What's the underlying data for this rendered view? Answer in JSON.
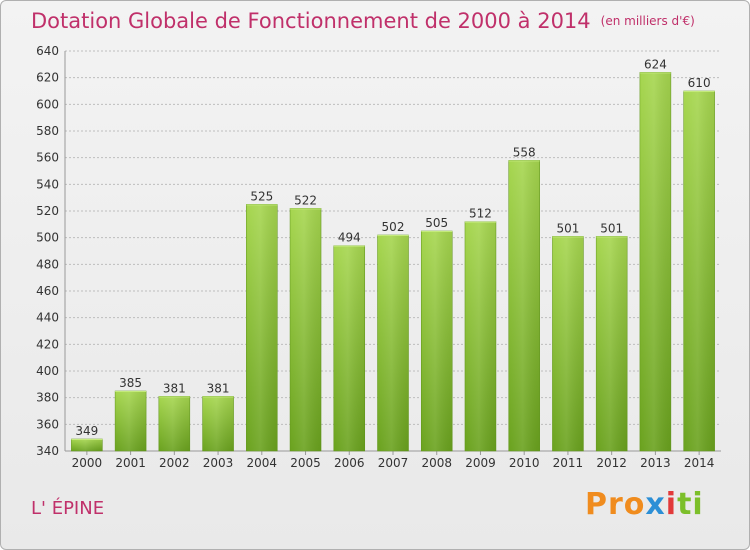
{
  "header": {
    "title": "Dotation Globale de Fonctionnement de 2000 à 2014",
    "unit": "(en milliers d'€)"
  },
  "footer": {
    "commune": "L' ÉPINE",
    "brand": [
      "Pro",
      "x",
      "i",
      "ti"
    ]
  },
  "colors": {
    "title": "#c0306a",
    "bar_light": "#a6d64f",
    "bar_dark": "#6aa21e",
    "grid": "#bdbdbd"
  },
  "chart_data": {
    "type": "bar",
    "title": "Dotation Globale de Fonctionnement de 2000 à 2014",
    "ylabel": "(en milliers d'€)",
    "xlabel": "",
    "categories": [
      "2000",
      "2001",
      "2002",
      "2003",
      "2004",
      "2005",
      "2006",
      "2007",
      "2008",
      "2009",
      "2010",
      "2011",
      "2012",
      "2013",
      "2014"
    ],
    "values": [
      349,
      385,
      381,
      381,
      525,
      522,
      494,
      502,
      505,
      512,
      558,
      501,
      501,
      624,
      610
    ],
    "ylim": [
      340,
      640
    ],
    "yticks": [
      340,
      360,
      380,
      400,
      420,
      440,
      460,
      480,
      500,
      520,
      540,
      560,
      580,
      600,
      620,
      640
    ],
    "grid": true
  }
}
